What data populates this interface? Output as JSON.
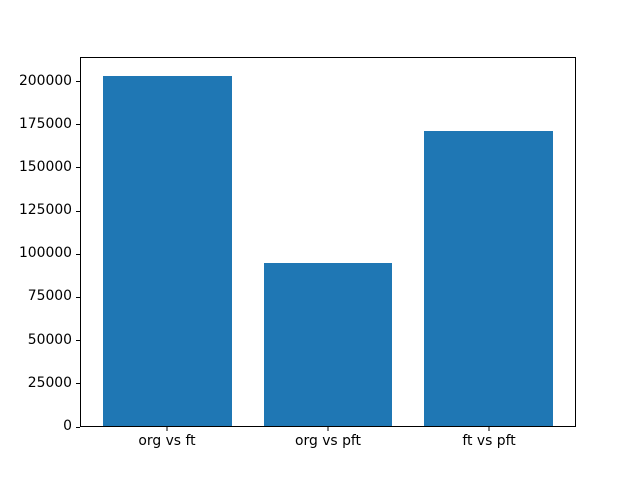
{
  "window": {
    "background": "#ffffff"
  },
  "chart_data": {
    "type": "bar",
    "title": "",
    "xlabel": "",
    "ylabel": "",
    "categories": [
      "org vs ft",
      "org vs pft",
      "ft vs pft"
    ],
    "values": [
      204000,
      95000,
      172000
    ],
    "bar_color": "#1f77b4",
    "bar_width": 0.8,
    "x_margin": 0.05,
    "ylim": [
      0,
      214200
    ],
    "yticks": [
      0,
      25000,
      50000,
      75000,
      100000,
      125000,
      150000,
      175000,
      200000
    ],
    "grid": false,
    "legend": false,
    "axes_style": {
      "spine_color": "#000000",
      "tick_color": "#000000",
      "tick_label_color": "#000000",
      "plot_background": "#ffffff"
    }
  }
}
